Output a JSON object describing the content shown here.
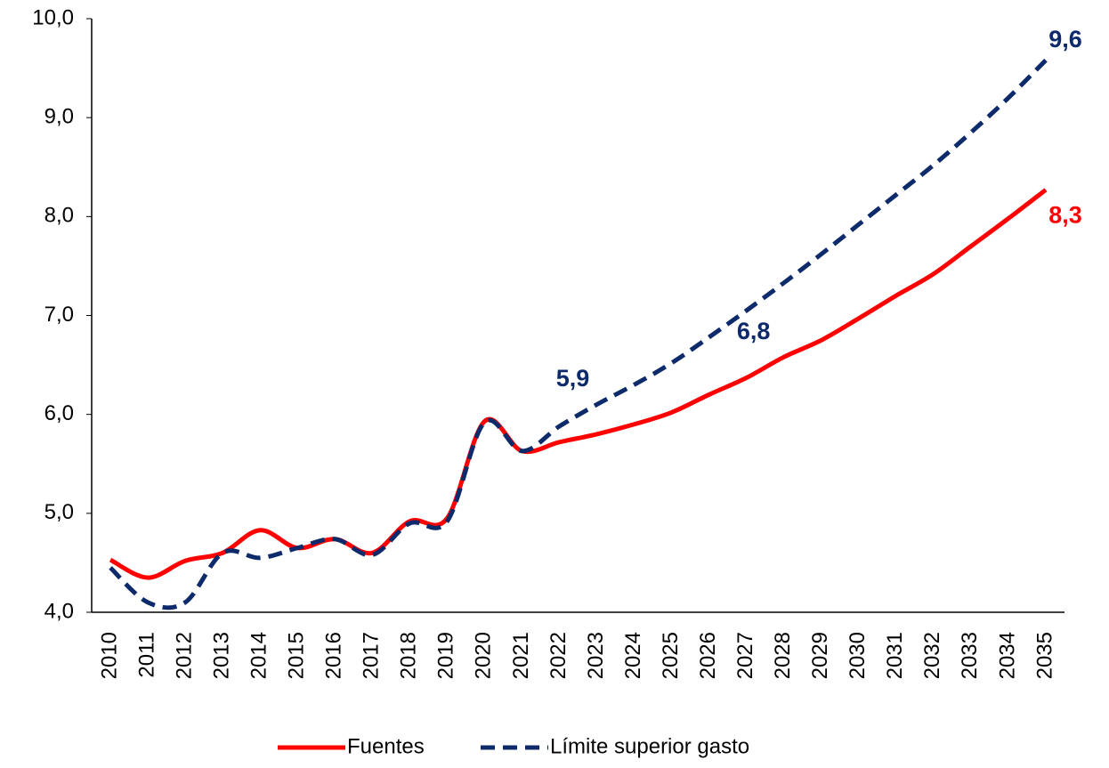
{
  "chart_data": {
    "type": "line",
    "categories": [
      "2010",
      "2011",
      "2012",
      "2013",
      "2014",
      "2015",
      "2016",
      "2017",
      "2018",
      "2019",
      "2020",
      "2021",
      "2022",
      "2023",
      "2024",
      "2025",
      "2026",
      "2027",
      "2028",
      "2029",
      "2030",
      "2031",
      "2032",
      "2033",
      "2034",
      "2035"
    ],
    "series": [
      {
        "name": "Fuentes",
        "color": "#ff0000",
        "dash": false,
        "values": [
          4.53,
          4.35,
          4.52,
          4.6,
          4.83,
          4.65,
          4.74,
          4.6,
          4.92,
          4.95,
          5.93,
          5.63,
          5.72,
          5.8,
          5.9,
          6.02,
          6.2,
          6.37,
          6.58,
          6.75,
          6.97,
          7.2,
          7.42,
          7.7,
          7.98,
          8.27
        ],
        "value_labels": [
          null,
          null,
          null,
          null,
          null,
          null,
          null,
          null,
          null,
          null,
          null,
          null,
          null,
          null,
          null,
          null,
          null,
          null,
          null,
          null,
          null,
          null,
          null,
          null,
          null,
          "8,3"
        ]
      },
      {
        "name": "Límite superior gasto",
        "color": "#0d2a6b",
        "dash": true,
        "values": [
          4.45,
          4.1,
          4.1,
          4.6,
          4.55,
          4.65,
          4.74,
          4.58,
          4.9,
          4.92,
          5.92,
          5.63,
          5.88,
          6.1,
          6.3,
          6.52,
          6.78,
          7.05,
          7.33,
          7.62,
          7.92,
          8.22,
          8.52,
          8.85,
          9.2,
          9.58
        ],
        "value_labels": [
          null,
          null,
          null,
          null,
          null,
          null,
          null,
          null,
          null,
          null,
          null,
          null,
          "5,9",
          null,
          null,
          null,
          "6,8",
          null,
          null,
          null,
          null,
          null,
          null,
          null,
          null,
          "9,6"
        ]
      }
    ],
    "ylim": [
      4,
      10
    ],
    "yticks": [
      {
        "value": 4,
        "label": "4,0"
      },
      {
        "value": 5,
        "label": "5,0"
      },
      {
        "value": 6,
        "label": "6,0"
      },
      {
        "value": 7,
        "label": "7,0"
      },
      {
        "value": 8,
        "label": "8,0"
      },
      {
        "value": 9,
        "label": "9,0"
      },
      {
        "value": 10,
        "label": "10,0"
      }
    ],
    "grid": false,
    "legend": "bottom"
  }
}
